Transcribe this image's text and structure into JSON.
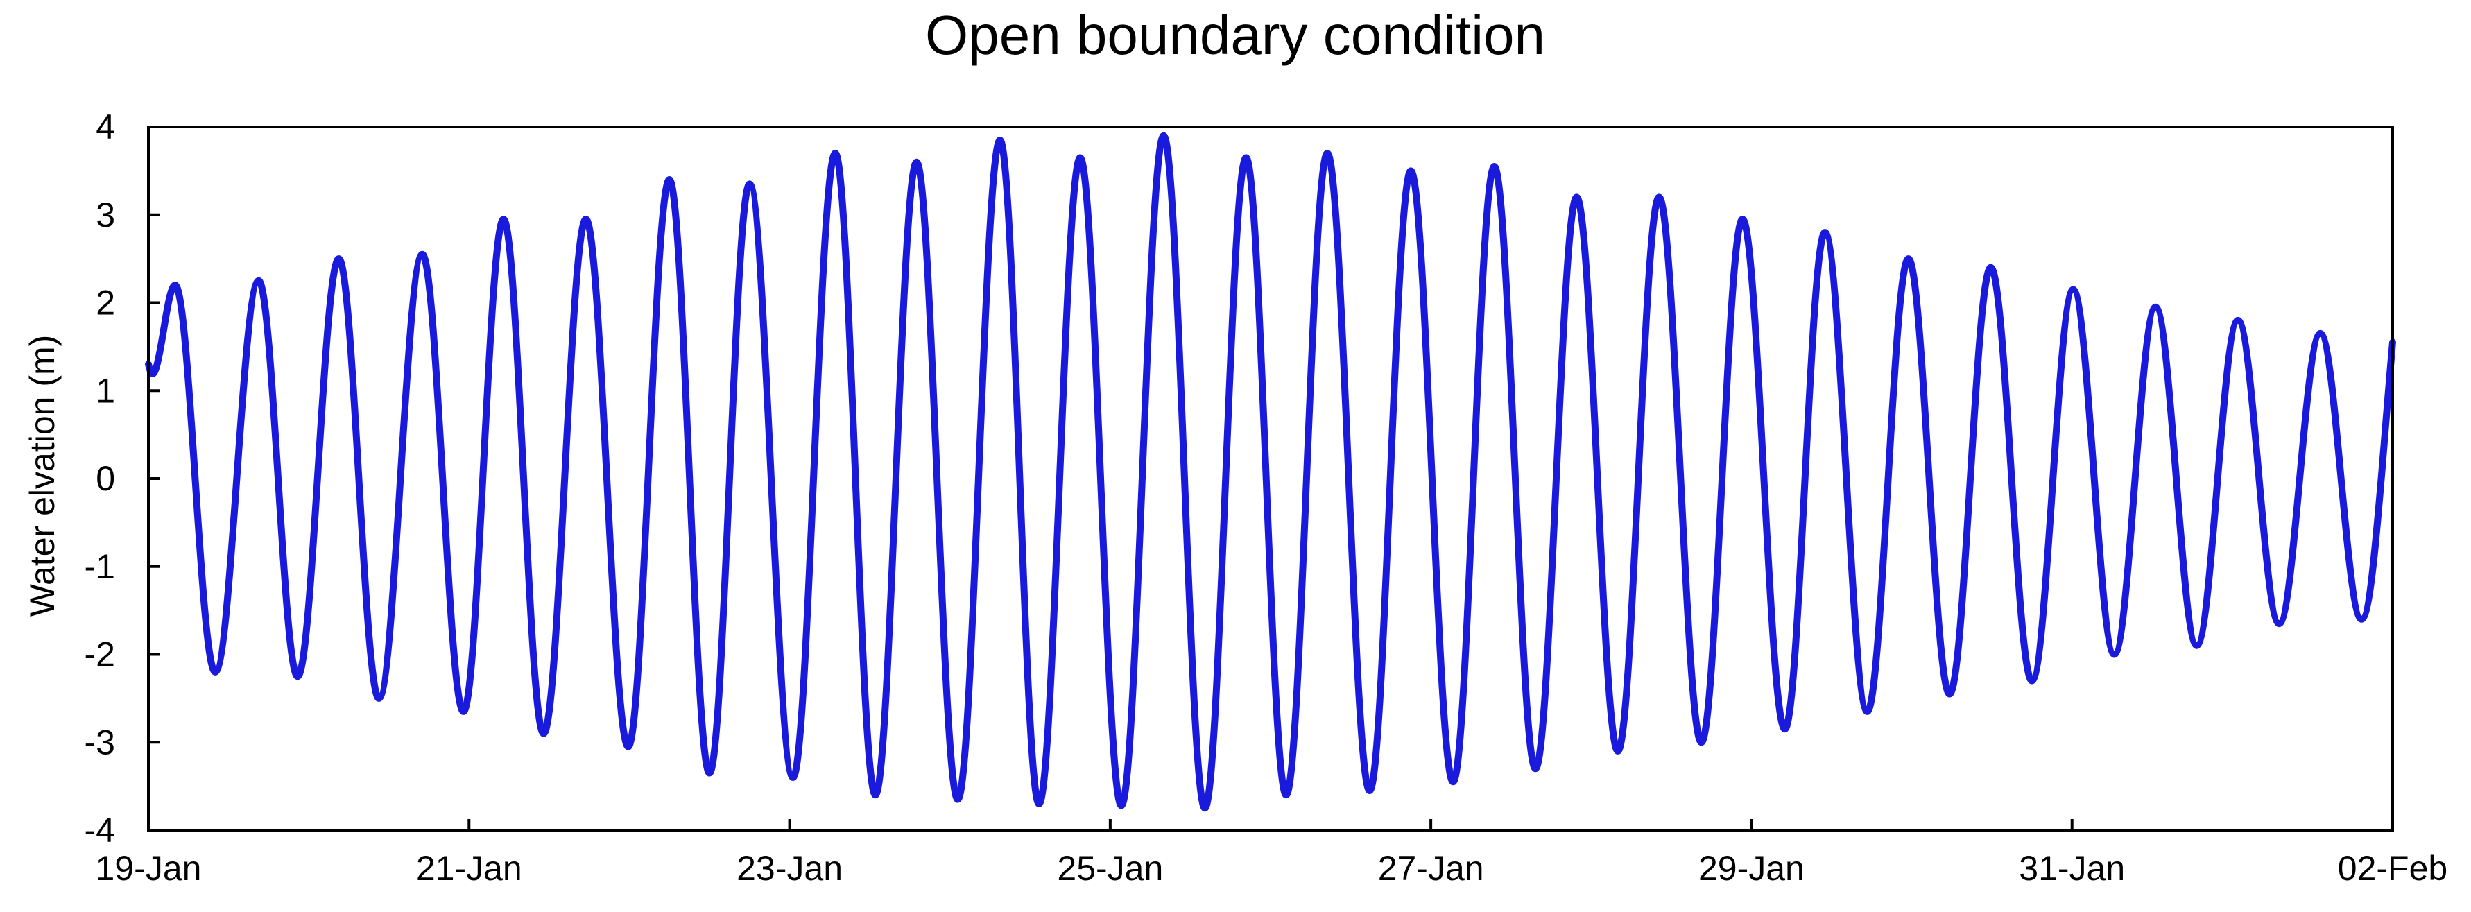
{
  "chart_data": {
    "type": "line",
    "title": "Open boundary condition",
    "xlabel": "",
    "ylabel": "Water elvation (m)",
    "x_tick_labels": [
      "19-Jan",
      "21-Jan",
      "23-Jan",
      "25-Jan",
      "27-Jan",
      "29-Jan",
      "31-Jan",
      "02-Feb"
    ],
    "x_tick_dates": [
      "2000-01-19",
      "2000-01-21",
      "2000-01-23",
      "2000-01-25",
      "2000-01-27",
      "2000-01-29",
      "2000-01-31",
      "2000-02-02"
    ],
    "xlim": [
      "2000-01-19T00:00",
      "2000-02-02T00:00"
    ],
    "ylim": [
      -4,
      4
    ],
    "y_ticks": [
      -4,
      -3,
      -2,
      -1,
      0,
      1,
      2,
      3,
      4
    ],
    "grid": false,
    "legend": "none",
    "line_color": "#1a1adc",
    "series": [
      {
        "x": [
          "2000-01-19T00:00",
          "2000-01-19T04:00",
          "2000-01-19T10:00",
          "2000-01-19T16:30",
          "2000-01-19T22:20",
          "2000-01-20T04:30",
          "2000-01-20T10:30",
          "2000-01-20T17:00",
          "2000-01-20T23:10",
          "2000-01-21T05:10",
          "2000-01-21T11:10",
          "2000-01-21T17:30",
          "2000-01-21T23:50",
          "2000-01-22T06:00",
          "2000-01-22T12:00",
          "2000-01-22T18:00",
          "2000-01-23T00:30",
          "2000-01-23T06:50",
          "2000-01-23T12:50",
          "2000-01-23T19:00",
          "2000-01-24T01:10",
          "2000-01-24T07:30",
          "2000-01-24T13:20",
          "2000-01-24T19:30",
          "2000-01-25T01:40",
          "2000-01-25T08:00",
          "2000-01-25T14:10",
          "2000-01-25T20:20",
          "2000-01-26T02:20",
          "2000-01-26T08:30",
          "2000-01-26T14:50",
          "2000-01-26T21:00",
          "2000-01-27T03:20",
          "2000-01-27T09:30",
          "2000-01-27T15:40",
          "2000-01-27T21:50",
          "2000-01-28T04:00",
          "2000-01-28T10:10",
          "2000-01-28T16:30",
          "2000-01-28T22:40",
          "2000-01-29T05:00",
          "2000-01-29T11:00",
          "2000-01-29T17:20",
          "2000-01-29T23:30",
          "2000-01-30T05:40",
          "2000-01-30T11:50",
          "2000-01-30T18:00",
          "2000-01-31T00:10",
          "2000-01-31T06:20",
          "2000-01-31T12:30",
          "2000-01-31T18:40",
          "2000-02-01T00:50",
          "2000-02-01T07:00",
          "2000-02-01T13:10",
          "2000-02-01T19:20",
          "2000-02-02T00:00"
        ],
        "values": [
          1.3,
          2.2,
          -2.2,
          2.25,
          -2.25,
          2.5,
          -2.5,
          2.55,
          -2.65,
          2.95,
          -2.9,
          2.95,
          -3.05,
          3.4,
          -3.35,
          3.35,
          -3.4,
          3.7,
          -3.6,
          3.6,
          -3.65,
          3.85,
          -3.7,
          3.65,
          -3.72,
          3.9,
          -3.75,
          3.65,
          -3.6,
          3.7,
          -3.55,
          3.5,
          -3.45,
          3.55,
          -3.3,
          3.2,
          -3.1,
          3.2,
          -3.0,
          2.95,
          -2.85,
          2.8,
          -2.65,
          2.5,
          -2.45,
          2.4,
          -2.3,
          2.15,
          -2.0,
          1.95,
          -1.9,
          1.8,
          -1.65,
          1.65,
          -1.6,
          1.55
        ]
      }
    ]
  }
}
